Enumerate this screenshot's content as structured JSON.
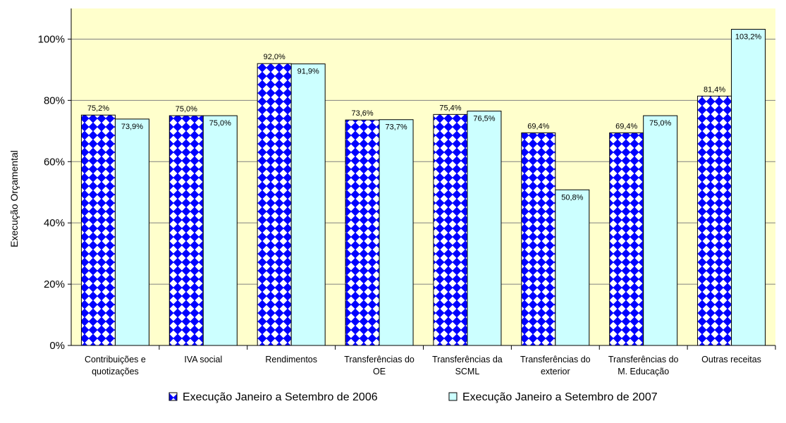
{
  "chart_data": {
    "type": "bar",
    "title": "",
    "ylabel": "Execução Orçamental",
    "xlabel": "",
    "ylim": [
      0,
      110
    ],
    "yticks": [
      0,
      20,
      40,
      60,
      80,
      100
    ],
    "ytick_labels": [
      "0%",
      "20%",
      "40%",
      "60%",
      "80%",
      "100%"
    ],
    "grid": true,
    "legend_position": "bottom",
    "categories": [
      [
        "Contribuições e",
        "quotizações"
      ],
      [
        "IVA social"
      ],
      [
        "Rendimentos"
      ],
      [
        "Transferências do",
        "OE"
      ],
      [
        "Transferências da",
        "SCML"
      ],
      [
        "Transferências do",
        "exterior"
      ],
      [
        "Transferências do",
        "M. Educação"
      ],
      [
        "Outras receitas"
      ]
    ],
    "series": [
      {
        "name": "Execução Janeiro a Setembro de 2006",
        "values": [
          75.2,
          75.0,
          92.0,
          73.6,
          75.4,
          69.4,
          69.4,
          81.4
        ],
        "labels": [
          "75,2%",
          "75,0%",
          "92,0%",
          "73,6%",
          "75,4%",
          "69,4%",
          "69,4%",
          "81,4%"
        ],
        "color": "#0000FF",
        "pattern": "diamond-checker"
      },
      {
        "name": "Execução Janeiro a Setembro de 2007",
        "values": [
          73.9,
          75.0,
          91.9,
          73.7,
          76.5,
          50.8,
          75.0,
          103.2
        ],
        "labels": [
          "73,9%",
          "75,0%",
          "91,9%",
          "73,7%",
          "76,5%",
          "50,8%",
          "75,0%",
          "103,2%"
        ],
        "color": "#CCFFFF"
      }
    ],
    "plot_background": "#FFFFCC"
  }
}
